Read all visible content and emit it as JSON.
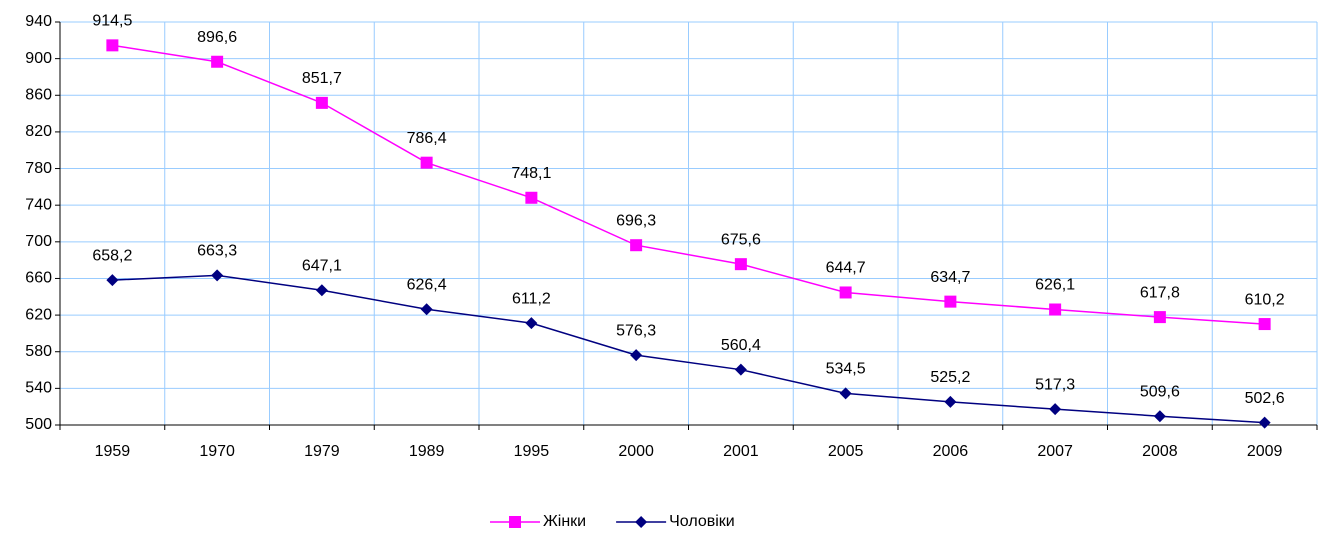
{
  "chart_data": {
    "type": "line",
    "categories": [
      "1959",
      "1970",
      "1979",
      "1989",
      "1995",
      "2000",
      "2001",
      "2005",
      "2006",
      "2007",
      "2008",
      "2009"
    ],
    "series": [
      {
        "name": "Жінки",
        "color": "#ff00ff",
        "marker": "square",
        "values": [
          914.5,
          896.6,
          851.7,
          786.4,
          748.1,
          696.3,
          675.6,
          644.7,
          634.7,
          626.1,
          617.8,
          610.2
        ],
        "value_labels": [
          "914,5",
          "896,6",
          "851,7",
          "786,4",
          "748,1",
          "696,3",
          "675,6",
          "644,7",
          "634,7",
          "626,1",
          "617,8",
          "610,2"
        ]
      },
      {
        "name": "Чоловіки",
        "color": "#000080",
        "marker": "diamond",
        "values": [
          658.2,
          663.3,
          647.1,
          626.4,
          611.2,
          576.3,
          560.4,
          534.5,
          525.2,
          517.3,
          509.6,
          502.6
        ],
        "value_labels": [
          "658,2",
          "663,3",
          "647,1",
          "626,4",
          "611,2",
          "576,3",
          "560,4",
          "534,5",
          "525,2",
          "517,3",
          "509,6",
          "502,6"
        ]
      }
    ],
    "ylim": [
      500,
      940
    ],
    "yticks": [
      500,
      540,
      580,
      620,
      660,
      700,
      740,
      780,
      820,
      860,
      900,
      940
    ],
    "grid": true,
    "legend": "bottom"
  }
}
